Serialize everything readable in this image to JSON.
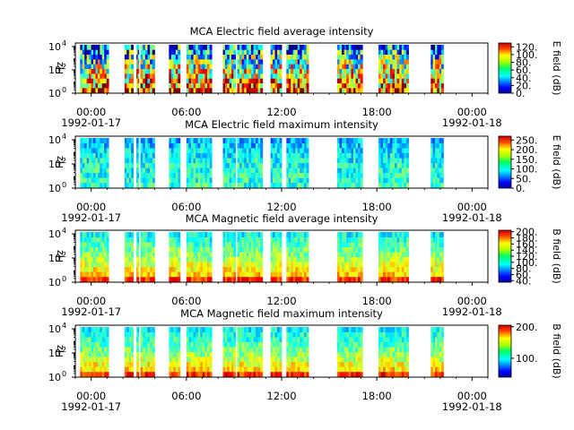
{
  "chart_data": [
    {
      "type": "heatmap",
      "title": "MCA  Electric field average intensity",
      "ylabel": "Hz",
      "ylim_exponent": [
        0,
        4.3
      ],
      "y_tick_labels": [
        {
          "base": "10",
          "exp": "0"
        },
        {
          "base": "10",
          "exp": "2"
        },
        {
          "base": "10",
          "exp": "4"
        }
      ],
      "x_tick_labels": [
        "00:00",
        "06:00",
        "12:00",
        "18:00",
        "00:00"
      ],
      "x_date_labels": [
        "1992-01-17",
        "1992-01-18"
      ],
      "colorbar": {
        "label": "E field (dB)",
        "range": [
          0,
          130
        ],
        "ticks": [
          0,
          20,
          40,
          60,
          80,
          100,
          120
        ],
        "tick_labels": [
          "0.",
          "20.",
          "40.",
          "60.",
          "80.",
          "100.",
          "120."
        ]
      },
      "intensity_profile": {
        "low_freq": 0.8,
        "mid_freq": 0.55,
        "high_freq": 0.25,
        "variability": 0.35
      }
    },
    {
      "type": "heatmap",
      "title": "MCA  Electric field maximum intensity",
      "ylabel": "Hz",
      "ylim_exponent": [
        0,
        4.3
      ],
      "y_tick_labels": [
        {
          "base": "10",
          "exp": "0"
        },
        {
          "base": "10",
          "exp": "2"
        },
        {
          "base": "10",
          "exp": "4"
        }
      ],
      "x_tick_labels": [
        "00:00",
        "06:00",
        "12:00",
        "18:00",
        "00:00"
      ],
      "x_date_labels": [
        "1992-01-17",
        "1992-01-18"
      ],
      "colorbar": {
        "label": "E field (dB)",
        "range": [
          0,
          270
        ],
        "ticks": [
          0,
          50,
          100,
          150,
          200,
          250
        ],
        "tick_labels": [
          "0.",
          "50.",
          "100.",
          "150.",
          "200.",
          "250."
        ]
      },
      "intensity_profile": {
        "low_freq": 0.42,
        "mid_freq": 0.4,
        "high_freq": 0.3,
        "variability": 0.12
      }
    },
    {
      "type": "heatmap",
      "title": "MCA  Magnetic field average intensity",
      "ylabel": "Hz",
      "ylim_exponent": [
        0,
        4.3
      ],
      "y_tick_labels": [
        {
          "base": "10",
          "exp": "0"
        },
        {
          "base": "10",
          "exp": "2"
        },
        {
          "base": "10",
          "exp": "4"
        }
      ],
      "x_tick_labels": [
        "00:00",
        "06:00",
        "12:00",
        "18:00",
        "00:00"
      ],
      "x_date_labels": [
        "1992-01-17",
        "1992-01-18"
      ],
      "colorbar": {
        "label": "B field (dB)",
        "range": [
          35,
          205
        ],
        "ticks": [
          40,
          60,
          80,
          100,
          120,
          140,
          160,
          180,
          200
        ],
        "tick_labels": [
          "40.",
          "60.",
          "80.",
          "100.",
          "120.",
          "140.",
          "160.",
          "180.",
          "200."
        ]
      },
      "intensity_profile": {
        "low_freq": 0.72,
        "mid_freq": 0.52,
        "high_freq": 0.38,
        "variability": 0.1
      }
    },
    {
      "type": "heatmap",
      "title": "MCA  Magnetic field maximum intensity",
      "ylabel": "Hz",
      "ylim_exponent": [
        0,
        4.3
      ],
      "y_tick_labels": [
        {
          "base": "10",
          "exp": "0"
        },
        {
          "base": "10",
          "exp": "2"
        },
        {
          "base": "10",
          "exp": "4"
        }
      ],
      "x_tick_labels": [
        "00:00",
        "06:00",
        "12:00",
        "18:00",
        "00:00"
      ],
      "x_date_labels": [
        "1992-01-17",
        "1992-01-18"
      ],
      "colorbar": {
        "label": "B field (dB)",
        "range": [
          40,
          205
        ],
        "ticks": [
          100,
          200
        ],
        "tick_labels": [
          "100.",
          "200."
        ]
      },
      "intensity_profile": {
        "low_freq": 0.72,
        "mid_freq": 0.5,
        "high_freq": 0.36,
        "variability": 0.1
      }
    }
  ],
  "data_coverage_hours": [
    [
      0.3,
      2.1
    ],
    [
      3.1,
      3.65
    ],
    [
      3.85,
      4.0
    ],
    [
      4.1,
      5.0
    ],
    [
      5.9,
      6.6
    ],
    [
      7.0,
      8.6
    ],
    [
      9.3,
      10.1
    ],
    [
      10.2,
      11.8
    ],
    [
      12.3,
      13.0
    ],
    [
      13.3,
      14.7
    ],
    [
      16.5,
      18.1
    ],
    [
      19.1,
      21.0
    ],
    [
      22.4,
      23.2
    ]
  ]
}
